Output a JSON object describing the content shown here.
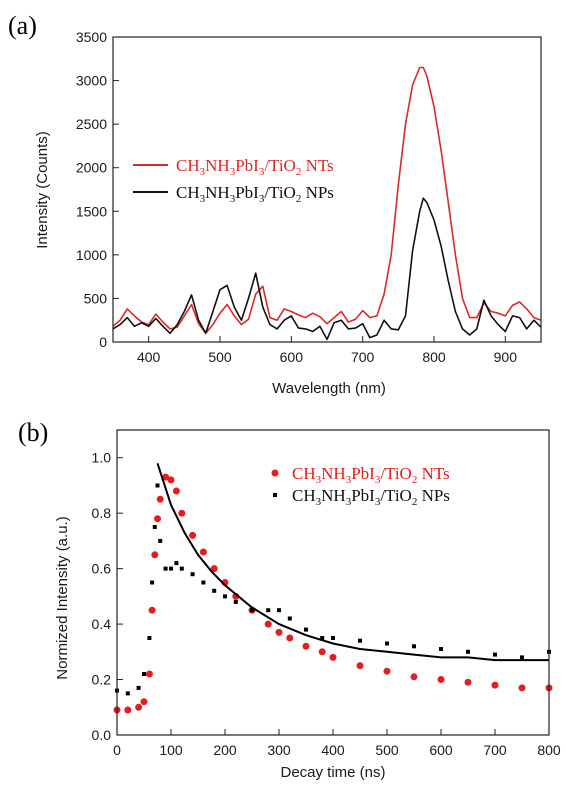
{
  "chart_data": [
    {
      "panel_label": "(a)",
      "type": "line",
      "xlabel": "Wavelength (nm)",
      "ylabel": "Intensity (Counts)",
      "xlim": [
        350,
        950
      ],
      "ylim": [
        0,
        3500
      ],
      "xticks": [
        400,
        500,
        600,
        700,
        800,
        900
      ],
      "yticks": [
        0,
        500,
        1000,
        1500,
        2000,
        2500,
        3000,
        3500
      ],
      "legend_position": "left",
      "series": [
        {
          "name": "CH3NH3PbI3/TiO2 NTs",
          "color": "#d62b2b",
          "x": [
            350,
            360,
            370,
            380,
            390,
            400,
            410,
            420,
            430,
            440,
            450,
            460,
            470,
            480,
            490,
            500,
            510,
            520,
            530,
            540,
            550,
            560,
            570,
            580,
            590,
            600,
            610,
            620,
            630,
            640,
            650,
            660,
            670,
            680,
            690,
            700,
            710,
            720,
            730,
            740,
            750,
            760,
            770,
            780,
            785,
            790,
            800,
            810,
            820,
            830,
            840,
            850,
            860,
            870,
            880,
            890,
            900,
            910,
            920,
            930,
            940,
            950
          ],
          "y": [
            180,
            250,
            380,
            300,
            230,
            200,
            320,
            230,
            150,
            170,
            300,
            430,
            210,
            100,
            200,
            330,
            430,
            300,
            200,
            260,
            550,
            640,
            280,
            250,
            380,
            350,
            310,
            280,
            330,
            290,
            210,
            280,
            350,
            230,
            260,
            360,
            280,
            300,
            550,
            1000,
            1800,
            2500,
            2950,
            3150,
            3150,
            3050,
            2700,
            2200,
            1600,
            1000,
            500,
            280,
            280,
            450,
            350,
            330,
            300,
            420,
            460,
            380,
            280,
            250
          ]
        },
        {
          "name": "CH3NH3PbI3/TiO2 NPs",
          "color": "#111111",
          "x": [
            350,
            360,
            370,
            380,
            390,
            400,
            410,
            420,
            430,
            440,
            450,
            460,
            470,
            480,
            490,
            500,
            510,
            520,
            530,
            540,
            550,
            560,
            570,
            580,
            590,
            600,
            610,
            620,
            630,
            640,
            650,
            660,
            670,
            680,
            690,
            700,
            710,
            720,
            730,
            740,
            750,
            760,
            770,
            780,
            785,
            790,
            800,
            810,
            820,
            830,
            840,
            850,
            860,
            870,
            880,
            890,
            900,
            910,
            920,
            930,
            940,
            950
          ],
          "y": [
            150,
            200,
            280,
            180,
            220,
            180,
            270,
            180,
            100,
            200,
            350,
            540,
            250,
            100,
            350,
            600,
            650,
            400,
            250,
            500,
            790,
            400,
            200,
            150,
            250,
            300,
            160,
            150,
            120,
            180,
            30,
            220,
            250,
            150,
            160,
            210,
            50,
            80,
            250,
            150,
            140,
            300,
            1050,
            1500,
            1650,
            1600,
            1400,
            1100,
            700,
            350,
            150,
            80,
            150,
            480,
            300,
            200,
            120,
            300,
            280,
            150,
            250,
            170
          ]
        }
      ]
    },
    {
      "panel_label": "(b)",
      "type": "scatter",
      "xlabel": "Decay time (ns)",
      "ylabel": "Normized Intensity (a.u.)",
      "xlim": [
        0,
        800
      ],
      "ylim": [
        0.0,
        1.1
      ],
      "xticks": [
        0,
        100,
        200,
        300,
        400,
        500,
        600,
        700,
        800
      ],
      "yticks": [
        0.0,
        0.2,
        0.4,
        0.6,
        0.8,
        1.0
      ],
      "legend_position": "top-right",
      "series": [
        {
          "name": "CH3NH3PbI3/TiO2 NTs",
          "color": "#e02020",
          "x": [
            0,
            20,
            40,
            50,
            60,
            65,
            70,
            75,
            80,
            90,
            100,
            110,
            120,
            140,
            160,
            180,
            200,
            220,
            250,
            280,
            300,
            320,
            350,
            380,
            400,
            450,
            500,
            550,
            600,
            650,
            700,
            750,
            800
          ],
          "y": [
            0.09,
            0.09,
            0.1,
            0.12,
            0.22,
            0.45,
            0.65,
            0.78,
            0.85,
            0.93,
            0.92,
            0.88,
            0.8,
            0.72,
            0.66,
            0.6,
            0.55,
            0.5,
            0.45,
            0.4,
            0.37,
            0.35,
            0.32,
            0.3,
            0.28,
            0.25,
            0.23,
            0.21,
            0.2,
            0.19,
            0.18,
            0.17,
            0.17
          ]
        },
        {
          "name": "CH3NH3PbI3/TiO2 NPs",
          "color": "#000000",
          "x": [
            0,
            20,
            40,
            50,
            60,
            65,
            70,
            75,
            80,
            90,
            100,
            110,
            120,
            140,
            160,
            180,
            200,
            220,
            250,
            280,
            300,
            320,
            350,
            380,
            400,
            450,
            500,
            550,
            600,
            650,
            700,
            750,
            800
          ],
          "y": [
            0.16,
            0.15,
            0.17,
            0.22,
            0.35,
            0.55,
            0.75,
            0.9,
            0.7,
            0.6,
            0.6,
            0.62,
            0.6,
            0.58,
            0.55,
            0.52,
            0.5,
            0.48,
            0.45,
            0.45,
            0.45,
            0.42,
            0.38,
            0.35,
            0.35,
            0.34,
            0.33,
            0.32,
            0.31,
            0.3,
            0.29,
            0.28,
            0.3
          ]
        },
        {
          "name": "",
          "style": "fit-line",
          "color": "#000000",
          "x": [
            75,
            100,
            125,
            150,
            175,
            200,
            250,
            300,
            350,
            400,
            450,
            500,
            550,
            600,
            650,
            700,
            750,
            800
          ],
          "y": [
            0.98,
            0.83,
            0.73,
            0.65,
            0.59,
            0.54,
            0.46,
            0.4,
            0.36,
            0.33,
            0.31,
            0.3,
            0.29,
            0.28,
            0.28,
            0.27,
            0.27,
            0.27
          ]
        }
      ]
    }
  ]
}
